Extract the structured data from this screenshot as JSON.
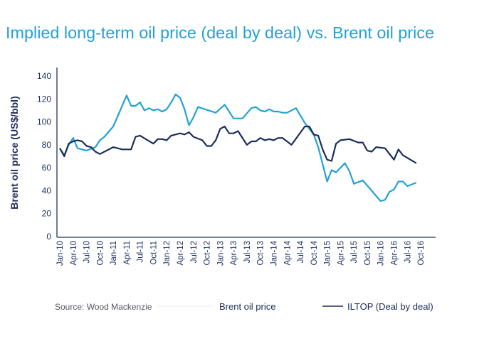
{
  "chart_data": {
    "type": "line",
    "title": "Implied long-term oil price (deal by deal) vs. Brent oil price",
    "xlabel": "",
    "ylabel": "Brent oil price (US$/bbl)",
    "ylim": [
      0,
      140
    ],
    "yticks": [
      0,
      20,
      40,
      60,
      80,
      100,
      120,
      140
    ],
    "xlim": [
      "2010-01",
      "2016-10"
    ],
    "xtick_labels": [
      "Jan-10",
      "Apr-10",
      "Jul-10",
      "Oct-10",
      "Jan-11",
      "Apr-11",
      "Jul-11",
      "Oct-11",
      "Jan-12",
      "Apr-12",
      "Jul-12",
      "Oct-12",
      "Jan-13",
      "Apr-13",
      "Jul-13",
      "Oct-13",
      "Jan-14",
      "Apr-14",
      "Jul-14",
      "Oct-14",
      "Jan-15",
      "Apr-15",
      "Jul-15",
      "Oct-15",
      "Jan-16",
      "Apr-16",
      "Jul-16",
      "Oct-16"
    ],
    "grid": false,
    "legend_placement": "bottom",
    "source": "Source: Wood Mackenzie",
    "series": [
      {
        "name": "Brent oil price",
        "color": "#23a1d6",
        "points": [
          [
            "2010-01",
            77
          ],
          [
            "2010-02",
            71
          ],
          [
            "2010-03",
            80
          ],
          [
            "2010-04",
            86
          ],
          [
            "2010-05",
            77
          ],
          [
            "2010-07",
            75
          ],
          [
            "2010-09",
            78
          ],
          [
            "2010-10",
            84
          ],
          [
            "2010-11",
            87
          ],
          [
            "2011-01",
            96
          ],
          [
            "2011-02",
            105
          ],
          [
            "2011-04",
            123
          ],
          [
            "2011-05",
            114
          ],
          [
            "2011-06",
            114
          ],
          [
            "2011-07",
            117
          ],
          [
            "2011-08",
            110
          ],
          [
            "2011-09",
            112
          ],
          [
            "2011-10",
            110
          ],
          [
            "2011-11",
            111
          ],
          [
            "2011-12",
            109
          ],
          [
            "2012-01",
            111
          ],
          [
            "2012-02",
            117
          ],
          [
            "2012-03",
            124
          ],
          [
            "2012-04",
            121
          ],
          [
            "2012-05",
            111
          ],
          [
            "2012-06",
            97
          ],
          [
            "2012-07",
            104
          ],
          [
            "2012-08",
            113
          ],
          [
            "2012-12",
            108
          ],
          [
            "2013-02",
            115
          ],
          [
            "2013-04",
            103
          ],
          [
            "2013-06",
            103
          ],
          [
            "2013-08",
            112
          ],
          [
            "2013-09",
            113
          ],
          [
            "2013-10",
            110
          ],
          [
            "2013-11",
            109
          ],
          [
            "2013-12",
            111
          ],
          [
            "2014-01",
            109
          ],
          [
            "2014-02",
            109
          ],
          [
            "2014-03",
            108
          ],
          [
            "2014-04",
            108
          ],
          [
            "2014-06",
            112
          ],
          [
            "2014-08",
            99
          ],
          [
            "2014-10",
            89
          ],
          [
            "2014-11",
            78
          ],
          [
            "2015-01",
            48
          ],
          [
            "2015-02",
            58
          ],
          [
            "2015-03",
            56
          ],
          [
            "2015-05",
            64
          ],
          [
            "2015-06",
            57
          ],
          [
            "2015-07",
            46
          ],
          [
            "2015-09",
            49
          ],
          [
            "2016-01",
            31
          ],
          [
            "2016-02",
            32
          ],
          [
            "2016-03",
            39
          ],
          [
            "2016-04",
            41
          ],
          [
            "2016-05",
            48
          ],
          [
            "2016-06",
            48
          ],
          [
            "2016-07",
            44
          ],
          [
            "2016-09",
            47
          ]
        ]
      },
      {
        "name": "ILTOP (Deal by deal)",
        "color": "#1b2d5a",
        "points": [
          [
            "2010-01",
            77
          ],
          [
            "2010-02",
            70
          ],
          [
            "2010-03",
            81
          ],
          [
            "2010-04",
            83
          ],
          [
            "2010-05",
            84
          ],
          [
            "2010-06",
            83
          ],
          [
            "2010-07",
            79
          ],
          [
            "2010-08",
            78
          ],
          [
            "2010-09",
            74
          ],
          [
            "2010-10",
            72
          ],
          [
            "2011-01",
            78
          ],
          [
            "2011-03",
            76
          ],
          [
            "2011-05",
            76
          ],
          [
            "2011-06",
            87
          ],
          [
            "2011-07",
            88
          ],
          [
            "2011-10",
            81
          ],
          [
            "2011-11",
            85
          ],
          [
            "2011-12",
            85
          ],
          [
            "2012-01",
            84
          ],
          [
            "2012-02",
            88
          ],
          [
            "2012-04",
            90
          ],
          [
            "2012-05",
            89
          ],
          [
            "2012-06",
            91
          ],
          [
            "2012-07",
            87
          ],
          [
            "2012-09",
            84
          ],
          [
            "2012-10",
            79
          ],
          [
            "2012-11",
            79
          ],
          [
            "2012-12",
            84
          ],
          [
            "2013-01",
            94
          ],
          [
            "2013-02",
            96
          ],
          [
            "2013-03",
            90
          ],
          [
            "2013-04",
            90
          ],
          [
            "2013-05",
            92
          ],
          [
            "2013-07",
            80
          ],
          [
            "2013-08",
            83
          ],
          [
            "2013-09",
            83
          ],
          [
            "2013-10",
            86
          ],
          [
            "2013-11",
            84
          ],
          [
            "2013-12",
            85
          ],
          [
            "2014-01",
            84
          ],
          [
            "2014-02",
            86
          ],
          [
            "2014-03",
            86
          ],
          [
            "2014-05",
            80
          ],
          [
            "2014-08",
            96
          ],
          [
            "2014-09",
            96
          ],
          [
            "2014-10",
            89
          ],
          [
            "2014-11",
            88
          ],
          [
            "2014-12",
            76
          ],
          [
            "2015-01",
            67
          ],
          [
            "2015-02",
            66
          ],
          [
            "2015-03",
            81
          ],
          [
            "2015-04",
            84
          ],
          [
            "2015-06",
            85
          ],
          [
            "2015-08",
            82
          ],
          [
            "2015-09",
            82
          ],
          [
            "2015-10",
            75
          ],
          [
            "2015-11",
            74
          ],
          [
            "2015-12",
            78
          ],
          [
            "2016-02",
            77
          ],
          [
            "2016-04",
            67
          ],
          [
            "2016-05",
            76
          ],
          [
            "2016-06",
            71
          ],
          [
            "2016-09",
            64
          ]
        ]
      }
    ]
  }
}
